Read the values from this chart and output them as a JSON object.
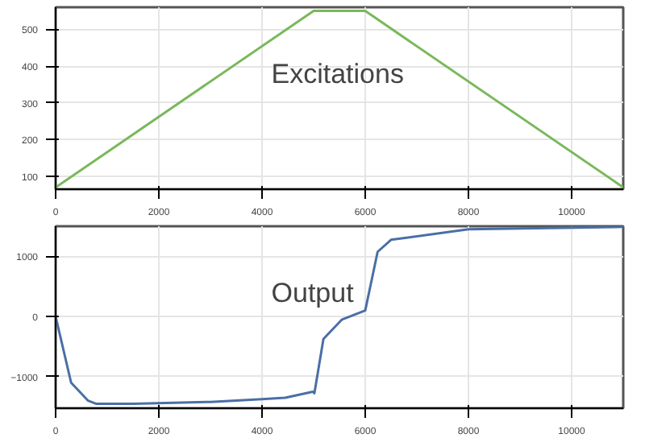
{
  "chart_data": [
    {
      "type": "line",
      "annotations": [
        "Excitations"
      ],
      "x": [
        0,
        5000,
        6000,
        11000
      ],
      "series": [
        {
          "color": "#7ab85a",
          "values": [
            70,
            550,
            550,
            70
          ]
        }
      ],
      "xlim": [
        0,
        11000
      ],
      "ylim": [
        65,
        560
      ],
      "xticks": [
        0,
        2000,
        4000,
        6000,
        8000,
        10000
      ],
      "yticks": [
        100,
        200,
        300,
        400,
        500
      ],
      "grid": true
    },
    {
      "type": "line",
      "annotations": [
        "Output"
      ],
      "x": [
        0,
        300,
        630,
        780,
        1500,
        3000,
        4000,
        4450,
        4985,
        5015,
        5190,
        5550,
        6000,
        6240,
        6500,
        8000,
        11000
      ],
      "series": [
        {
          "color": "#4a6fa5",
          "values": [
            0,
            -1100,
            -1400,
            -1450,
            -1450,
            -1420,
            -1375,
            -1350,
            -1250,
            -1275,
            -375,
            -50,
            100,
            1075,
            1275,
            1450,
            1490
          ]
        }
      ],
      "xlim": [
        0,
        11000
      ],
      "ylim": [
        -1525,
        1500
      ],
      "xticks": [
        0,
        2000,
        4000,
        6000,
        8000,
        10000
      ],
      "yticks": [
        -1000,
        0,
        1000
      ],
      "grid": true
    }
  ]
}
